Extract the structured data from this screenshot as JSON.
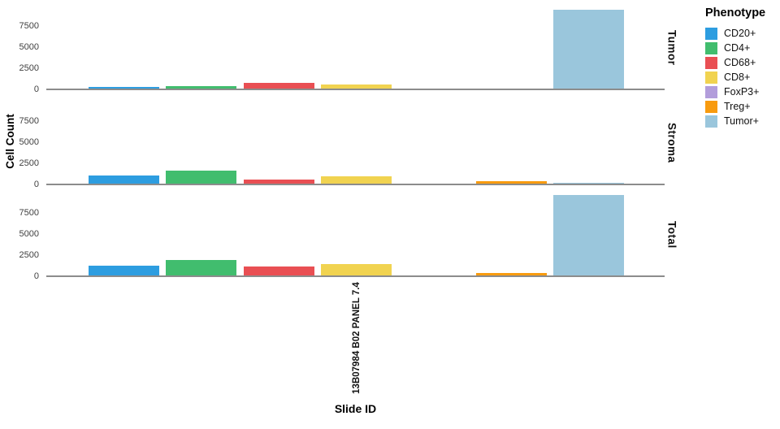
{
  "chart_data": {
    "type": "bar",
    "layout": "faceted-grouped-bars",
    "facets": [
      "Tumor",
      "Stroma",
      "Total"
    ],
    "categories": [
      "13B07984 B02 PANEL 7.4"
    ],
    "xlabel": "Slide ID",
    "ylabel": "Cell Count",
    "yticks": [
      0,
      2500,
      5000,
      7500
    ],
    "ylim": [
      0,
      9700
    ],
    "grid": false,
    "legend": {
      "title": "Phenotype",
      "position": "right"
    },
    "series": [
      {
        "name": "CD20+",
        "color": "#2D9DE0",
        "values": [
          180,
          950,
          1130
        ]
      },
      {
        "name": "CD4+",
        "color": "#41BD6E",
        "values": [
          280,
          1550,
          1830
        ]
      },
      {
        "name": "CD68+",
        "color": "#E94F53",
        "values": [
          650,
          450,
          1100
        ]
      },
      {
        "name": "CD8+",
        "color": "#F1D350",
        "values": [
          490,
          870,
          1360
        ]
      },
      {
        "name": "FoxP3+",
        "color": "#B29DDB",
        "values": [
          0,
          0,
          0
        ]
      },
      {
        "name": "Treg+",
        "color": "#F89B0F",
        "values": [
          0,
          310,
          310
        ]
      },
      {
        "name": "Tumor+",
        "color": "#9AC6DC",
        "values": [
          9350,
          130,
          9480
        ]
      }
    ]
  },
  "colors": {
    "axis_line": "#8C8C8C",
    "tick_text": "#3f3f3f",
    "background": "#ffffff"
  }
}
